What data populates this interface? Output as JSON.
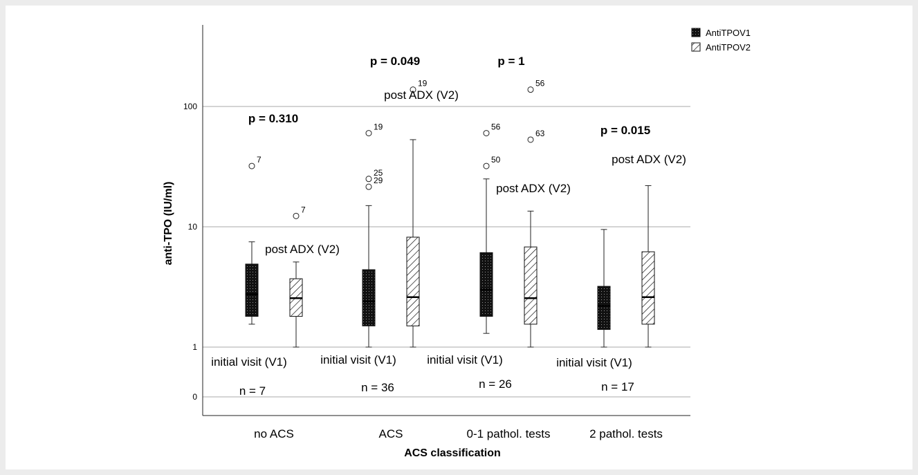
{
  "chart_data": {
    "type": "box",
    "xlabel": "ACS classification",
    "ylabel": "anti-TPO (IU/ml)",
    "yscale": "log",
    "yticks": [
      "0",
      "1",
      "10",
      "100"
    ],
    "categories": [
      "no ACS",
      "ACS",
      "0-1 pathol. tests",
      "2 pathol. tests"
    ],
    "series": [
      {
        "name": "AntiTPOV1",
        "pattern": "dots",
        "color": "#111111"
      },
      {
        "name": "AntiTPOV2",
        "pattern": "hatch",
        "color": "#111111"
      }
    ],
    "boxes": [
      {
        "group": 0,
        "series": 0,
        "min": 1.55,
        "q1": 1.8,
        "median": 2.75,
        "q3": 4.9,
        "max": 7.5,
        "outliers": [
          {
            "value": 32,
            "label": "7"
          }
        ]
      },
      {
        "group": 0,
        "series": 1,
        "min": 1.0,
        "q1": 1.8,
        "median": 2.55,
        "q3": 3.7,
        "max": 5.1,
        "outliers": [
          {
            "value": 12.3,
            "label": "7"
          }
        ]
      },
      {
        "group": 1,
        "series": 0,
        "min": 1.0,
        "q1": 1.5,
        "median": 2.4,
        "q3": 4.4,
        "max": 15,
        "outliers": [
          {
            "value": 21.5,
            "label": "29"
          },
          {
            "value": 25,
            "label": "25"
          },
          {
            "value": 60,
            "label": "19"
          }
        ]
      },
      {
        "group": 1,
        "series": 1,
        "min": 1.0,
        "q1": 1.5,
        "median": 2.6,
        "q3": 8.2,
        "max": 53,
        "outliers": [
          {
            "value": 138,
            "label": "19"
          }
        ]
      },
      {
        "group": 2,
        "series": 0,
        "min": 1.3,
        "q1": 1.8,
        "median": 3.0,
        "q3": 6.1,
        "max": 25,
        "outliers": [
          {
            "value": 32,
            "label": "50"
          },
          {
            "value": 60,
            "label": "56"
          }
        ]
      },
      {
        "group": 2,
        "series": 1,
        "min": 1.0,
        "q1": 1.55,
        "median": 2.55,
        "q3": 6.8,
        "max": 13.5,
        "outliers": [
          {
            "value": 53,
            "label": "63"
          },
          {
            "value": 138,
            "label": "56"
          }
        ]
      },
      {
        "group": 3,
        "series": 0,
        "min": 1.0,
        "q1": 1.4,
        "median": 2.2,
        "q3": 3.2,
        "max": 9.5,
        "outliers": []
      },
      {
        "group": 3,
        "series": 1,
        "min": 1.0,
        "q1": 1.55,
        "median": 2.6,
        "q3": 6.2,
        "max": 22,
        "outliers": []
      }
    ],
    "legend_position": "top-right",
    "grid": "horizontal major",
    "annotations": {
      "p_values": [
        "p = 0.310",
        "p = 0.049",
        "p = 1",
        "p = 0.015"
      ],
      "v1_labels": [
        "initial visit (V1)",
        "initial visit (V1)",
        "initial visit (V1)",
        "initial visit (V1)"
      ],
      "v2_labels": [
        "post ADX (V2)",
        "post ADX (V2)",
        "post ADX (V2)",
        "post ADX (V2)"
      ],
      "n_labels": [
        "n = 7",
        "n = 36",
        "n = 26",
        "n = 17"
      ]
    }
  }
}
